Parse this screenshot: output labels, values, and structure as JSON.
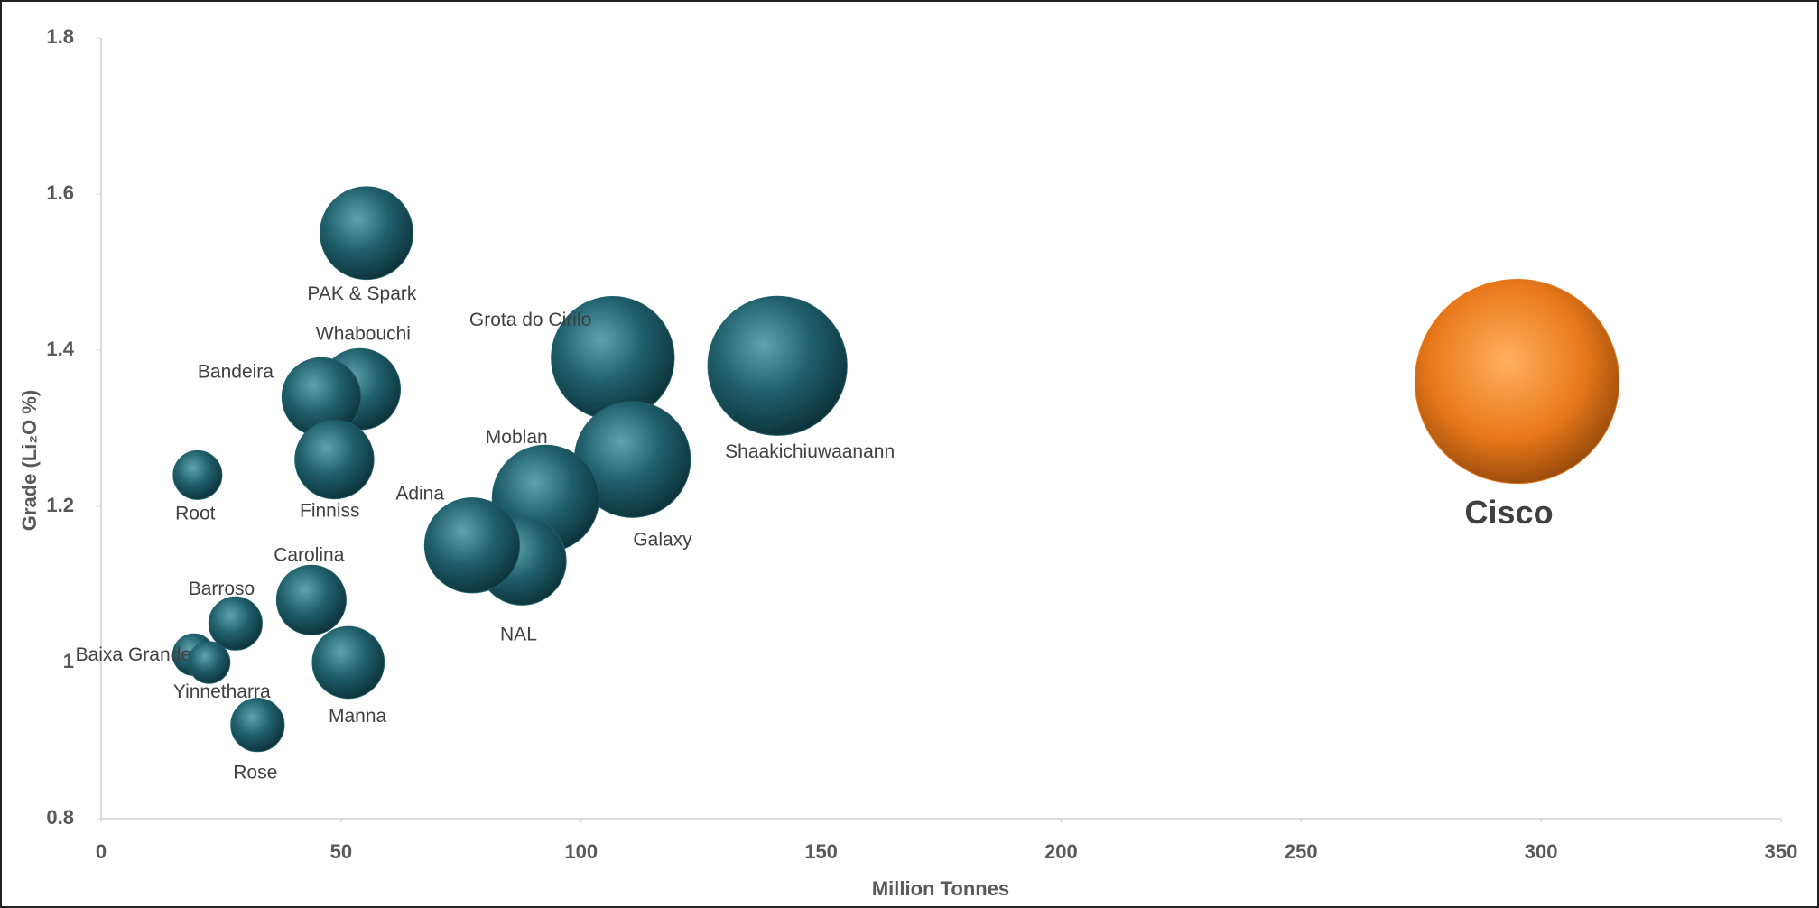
{
  "chart_data": {
    "type": "bubble",
    "x_label": "Million Tonnes",
    "y_label": "Grade (Li₂O %)",
    "xlim": [
      0,
      350
    ],
    "xticks": [
      0,
      50,
      100,
      150,
      200,
      250,
      300,
      350
    ],
    "ylim": [
      0.8,
      1.8
    ],
    "yticks": [
      {
        "value": 0.8,
        "label": "0.8"
      },
      1,
      1.2,
      1.4,
      1.6,
      1.8
    ],
    "points": [
      {
        "label": "PAK & Spark",
        "x": 55.3,
        "y": 1.55,
        "size": 1600,
        "color": "#1f5f6b"
      },
      {
        "label": "Whabouchi",
        "x": 53.9,
        "y": 1.35,
        "size": 1225,
        "color": "#1f5f6b"
      },
      {
        "label": "Bandeira",
        "x": 45.9,
        "y": 1.34,
        "size": 1156,
        "color": "#1f5f6b"
      },
      {
        "label": "Finniss",
        "x": 48.6,
        "y": 1.26,
        "size": 1156,
        "color": "#1f5f6b"
      },
      {
        "label": "Root",
        "x": 20.1,
        "y": 1.24,
        "size": 441,
        "color": "#1f5f6b"
      },
      {
        "label": "Grota do Cirilo",
        "x": 106.6,
        "y": 1.39,
        "size": 2809,
        "color": "#1f5f6b"
      },
      {
        "label": "Shaakichiuwaanann",
        "x": 140.9,
        "y": 1.38,
        "size": 3600,
        "color": "#1f5f6b"
      },
      {
        "label": "Galaxy",
        "x": 110.7,
        "y": 1.26,
        "size": 2500,
        "color": "#1f5f6b"
      },
      {
        "label": "Moblan",
        "x": 92.6,
        "y": 1.21,
        "size": 2116,
        "color": "#1f5f6b"
      },
      {
        "label": "NAL",
        "x": 87.7,
        "y": 1.13,
        "size": 1444,
        "color": "#1f5f6b"
      },
      {
        "label": "Adina",
        "x": 77.3,
        "y": 1.15,
        "size": 1681,
        "color": "#1f5f6b"
      },
      {
        "label": "Carolina",
        "x": 43.8,
        "y": 1.08,
        "size": 900,
        "color": "#1f5f6b"
      },
      {
        "label": "Barroso",
        "x": 28.0,
        "y": 1.05,
        "size": 529,
        "color": "#1f5f6b"
      },
      {
        "label": "Baixa Grande",
        "x": 19.3,
        "y": 1.01,
        "size": 324,
        "color": "#1f5f6b"
      },
      {
        "label": "Yinnetharra",
        "x": 22.5,
        "y": 1.0,
        "size": 324,
        "color": "#1f5f6b"
      },
      {
        "label": "Manna",
        "x": 51.5,
        "y": 1.0,
        "size": 961,
        "color": "#1f5f6b"
      },
      {
        "label": "Rose",
        "x": 32.6,
        "y": 0.92,
        "size": 529,
        "color": "#1f5f6b"
      },
      {
        "label": "Cisco",
        "x": 295,
        "y": 1.36,
        "size": 7744,
        "color": "#e8781a"
      }
    ]
  }
}
